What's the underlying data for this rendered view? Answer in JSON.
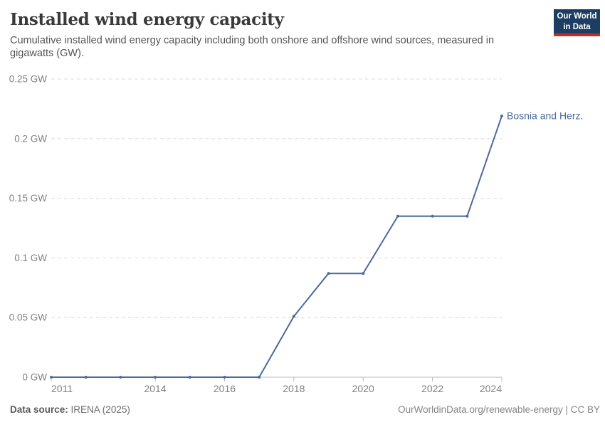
{
  "header": {
    "title": "Installed wind energy capacity",
    "subtitle": "Cumulative installed wind energy capacity including both onshore and offshore wind sources, measured in gigawatts (GW)."
  },
  "logo": {
    "line1": "Our World",
    "line2": "in Data",
    "background": "#1d3d63",
    "accent": "#bf2e26",
    "text_color": "#ffffff"
  },
  "chart_data": {
    "type": "line",
    "title": "Installed wind energy capacity",
    "unit": "GW",
    "x": [
      2011,
      2012,
      2013,
      2014,
      2015,
      2016,
      2017,
      2018,
      2019,
      2020,
      2021,
      2022,
      2023,
      2024
    ],
    "series": [
      {
        "name": "Bosnia and Herz.",
        "color": "#4C6A9C",
        "values": [
          0,
          0,
          0,
          0,
          0,
          0,
          0,
          0.051,
          0.087,
          0.087,
          0.135,
          0.135,
          0.135,
          0.219
        ]
      }
    ],
    "end_label": "Bosnia and Herz.",
    "xlim": [
      2011,
      2024
    ],
    "ylim": [
      0,
      0.25
    ],
    "x_ticks": [
      2011,
      2014,
      2016,
      2018,
      2020,
      2022,
      2024
    ],
    "y_ticks": [
      {
        "value": 0,
        "label": "0 GW"
      },
      {
        "value": 0.05,
        "label": "0.05 GW"
      },
      {
        "value": 0.1,
        "label": "0.1 GW"
      },
      {
        "value": 0.15,
        "label": "0.15 GW"
      },
      {
        "value": 0.2,
        "label": "0.2 GW"
      },
      {
        "value": 0.25,
        "label": "0.25 GW"
      }
    ],
    "grid": {
      "horizontal": true,
      "style": "dashed",
      "color": "#dcdcdc"
    },
    "axis_color": "#bbbbbb",
    "tick_label_color": "#808080",
    "legend_position": "end-of-line"
  },
  "footer": {
    "source_label": "Data source:",
    "source_value": "IRENA (2025)",
    "attribution": "OurWorldinData.org/renewable-energy | CC BY"
  }
}
